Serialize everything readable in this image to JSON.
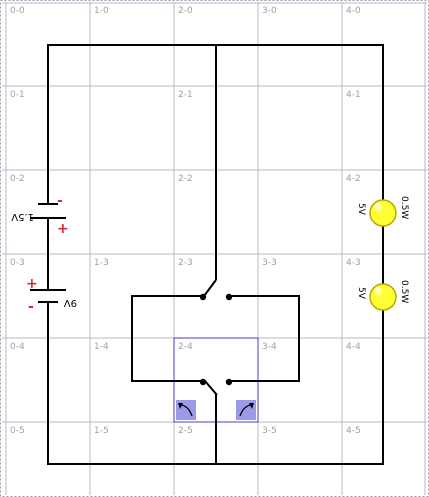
{
  "grid": {
    "cols": [
      "0",
      "1",
      "2",
      "3",
      "4"
    ],
    "rows": [
      "0",
      "1",
      "2",
      "3",
      "4",
      "5"
    ],
    "cell_labels": [
      [
        "0-0",
        "1-0",
        "2-0",
        "3-0",
        "4-0"
      ],
      [
        "0-1",
        "",
        "2-1",
        "",
        "4-1"
      ],
      [
        "0-2",
        "",
        "2-2",
        "",
        "4-2"
      ],
      [
        "0-3",
        "1-3",
        "2-3",
        "3-3",
        "4-3"
      ],
      [
        "0-4",
        "1-4",
        "2-4",
        "3-4",
        "4-4"
      ],
      [
        "0-5",
        "1-5",
        "2-5",
        "3-5",
        "4-5"
      ]
    ]
  },
  "batteries": [
    {
      "label": "1.5V",
      "plus": "+",
      "minus": "-"
    },
    {
      "label": "9V",
      "plus": "+",
      "minus": "-"
    }
  ],
  "bulbs": [
    {
      "voltage": "5V",
      "power": "0.5W"
    },
    {
      "voltage": "5V",
      "power": "0.5W"
    }
  ],
  "colors": {
    "grid_line": "#b8b8c8",
    "cell_label": "#a0a0a0",
    "wire": "#000000",
    "bulb_fill": "#ffff33",
    "bulb_stroke": "#b8a800",
    "selection": "#4040c0",
    "rotate_button_fill": "#9a9ae8"
  },
  "icons": [
    "rotate-ccw-icon",
    "rotate-cw-icon"
  ]
}
